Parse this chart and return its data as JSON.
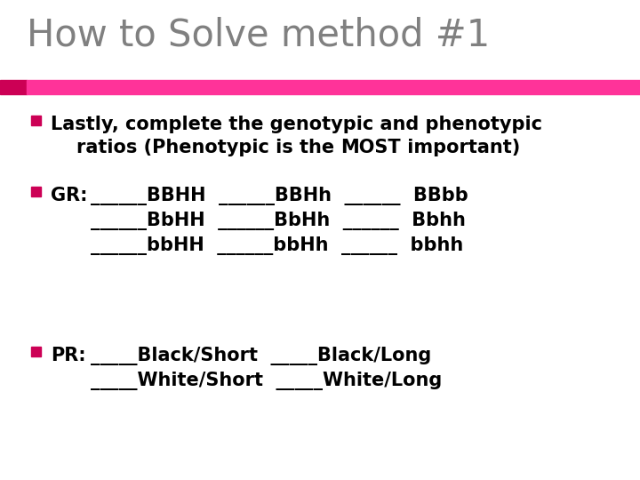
{
  "title": "How to Solve method #1",
  "title_color": "#808080",
  "title_fontsize": 30,
  "bar_color_left": "#cc0055",
  "bar_color_right": "#ff3399",
  "background_color": "#ffffff",
  "bullet_color": "#cc0055",
  "text_color": "#000000",
  "body_fontsize": 15,
  "line1_text": "Lastly, complete the genotypic and phenotypic",
  "line2_pre": "    ratios (Phenotypic is the ",
  "line2_bold": "MOST",
  "line2_post": " important)",
  "gr_label": "GR:",
  "gr_line1": "______BBHH  ______BBHh  ______  BBbb",
  "gr_line2": "______BbHH  ______BbHh  ______  Bbhh",
  "gr_line3": "______bbHH  ______bbHh  ______  bbhh",
  "pr_label": "PR:",
  "pr_line1": "_____Black/Short  _____Black/Long",
  "pr_line2": "_____White/Short  _____White/Long"
}
